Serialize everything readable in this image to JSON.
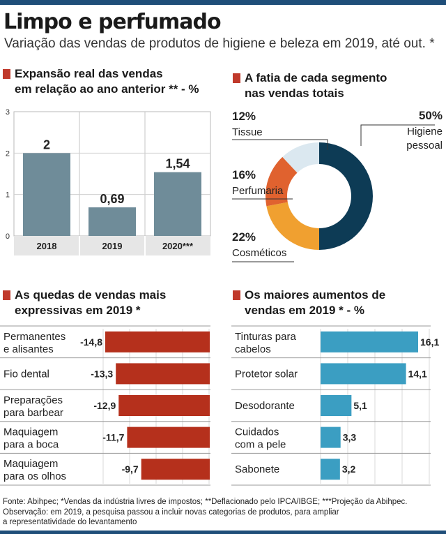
{
  "header": {
    "title": "Limpo e perfumado",
    "subtitle": "Variação das vendas de produtos de higiene e beleza em 2019, até out. *"
  },
  "sections": {
    "expansion": {
      "title_line1": "Expansão real das vendas",
      "title_line2": "em relação ao ano anterior ** - %"
    },
    "share": {
      "title_line1": "A fatia de cada segmento",
      "title_line2": "nas vendas totais"
    },
    "drops": {
      "title_line1": "As quedas de vendas mais",
      "title_line2": "expressivas em 2019 *"
    },
    "increases": {
      "title_line1": "Os maiores aumentos de",
      "title_line2": "vendas em 2019 * - %"
    }
  },
  "colors": {
    "accent": "#c0392b",
    "column": "#6f8c99",
    "drop": "#b5301c",
    "increase": "#3b9ec2",
    "header_bar": "#1f4e79"
  },
  "chart_data": [
    {
      "id": "expansion",
      "type": "bar",
      "categories": [
        "2018",
        "2019",
        "2020***"
      ],
      "values": [
        2,
        0.69,
        1.54
      ],
      "value_labels": [
        "2",
        "0,69",
        "1,54"
      ],
      "yticks": [
        "0",
        "1",
        "2",
        "3"
      ],
      "ylim": [
        0,
        3
      ],
      "grid": true
    },
    {
      "id": "share",
      "type": "pie",
      "slices": [
        {
          "name_line1": "Higiene",
          "name_line2": "pessoal",
          "value": 50,
          "label": "50%",
          "color": "#0d3b55"
        },
        {
          "name_line1": "Cosméticos",
          "name_line2": "",
          "value": 22,
          "label": "22%",
          "color": "#f0a030"
        },
        {
          "name_line1": "Perfumaria",
          "name_line2": "",
          "value": 16,
          "label": "16%",
          "color": "#e0622f"
        },
        {
          "name_line1": "Tissue",
          "name_line2": "",
          "value": 12,
          "label": "12%",
          "color": "#dbe8f0"
        }
      ]
    },
    {
      "id": "drops",
      "type": "bar",
      "orientation": "horizontal",
      "categories": [
        {
          "line1": "Permanentes",
          "line2": "e alisantes"
        },
        {
          "line1": "Fio dental",
          "line2": ""
        },
        {
          "line1": "Preparações",
          "line2": "para barbear"
        },
        {
          "line1": "Maquiagem",
          "line2": "para a boca"
        },
        {
          "line1": "Maquiagem",
          "line2": "para os olhos"
        }
      ],
      "values": [
        -14.8,
        -13.3,
        -12.9,
        -11.7,
        -9.7
      ],
      "value_labels": [
        "-14,8",
        "-13,3",
        "-12,9",
        "-11,7",
        "-9,7"
      ]
    },
    {
      "id": "increases",
      "type": "bar",
      "orientation": "horizontal",
      "categories": [
        {
          "line1": "Tinturas para",
          "line2": "cabelos"
        },
        {
          "line1": "Protetor solar",
          "line2": ""
        },
        {
          "line1": "Desodorante",
          "line2": ""
        },
        {
          "line1": "Cuidados",
          "line2": "com a pele"
        },
        {
          "line1": "Sabonete",
          "line2": ""
        }
      ],
      "values": [
        16.1,
        14.1,
        5.1,
        3.3,
        3.2
      ],
      "value_labels": [
        "16,1",
        "14,1",
        "5,1",
        "3,3",
        "3,2"
      ]
    }
  ],
  "footer": {
    "line1": "Fonte: Abihpec; *Vendas da indústria livres de impostos; **Deflacionado pelo IPCA/IBGE; ***Projeção da Abihpec.",
    "line2": "Observação: em 2019, a pesquisa passou a incluir  novas categorias de produtos, para ampliar",
    "line3": "a representatividade do levantamento"
  }
}
